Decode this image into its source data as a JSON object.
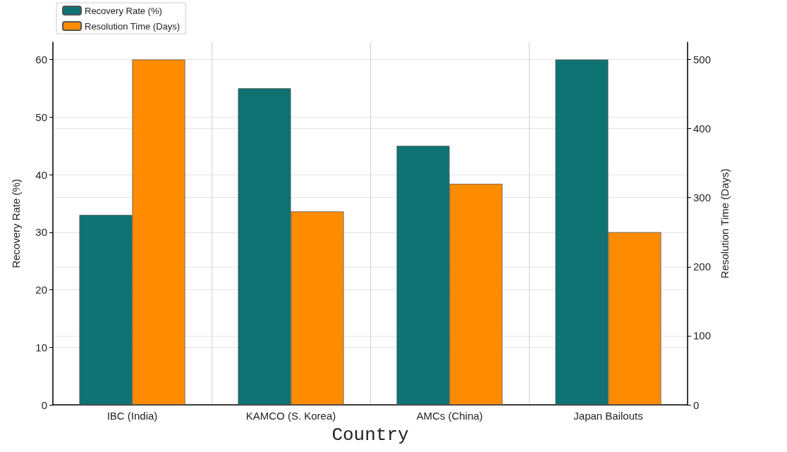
{
  "chart_data": {
    "type": "bar",
    "xlabel": "Country",
    "ylabel": "Recovery Rate (%)",
    "y2label": "Resolution Time (Days)",
    "categories": [
      "IBC (India)",
      "KAMCO (S. Korea)",
      "AMCs (China)",
      "Japan Bailouts"
    ],
    "series": [
      {
        "name": "Recovery Rate (%)",
        "color": "#0e7372",
        "values": [
          33,
          55,
          45,
          60
        ]
      },
      {
        "name": "Resolution Time (Days)",
        "color": "#ff8c00",
        "values": [
          500,
          280,
          320,
          250
        ],
        "axis": "y2"
      }
    ],
    "ylim": [
      0,
      63
    ],
    "yticks": [
      0,
      10,
      20,
      30,
      40,
      50,
      60
    ],
    "y2lim": [
      0,
      525
    ],
    "y2ticks": [
      0,
      100,
      200,
      300,
      400,
      500
    ],
    "grid": true,
    "legend": "top left"
  }
}
